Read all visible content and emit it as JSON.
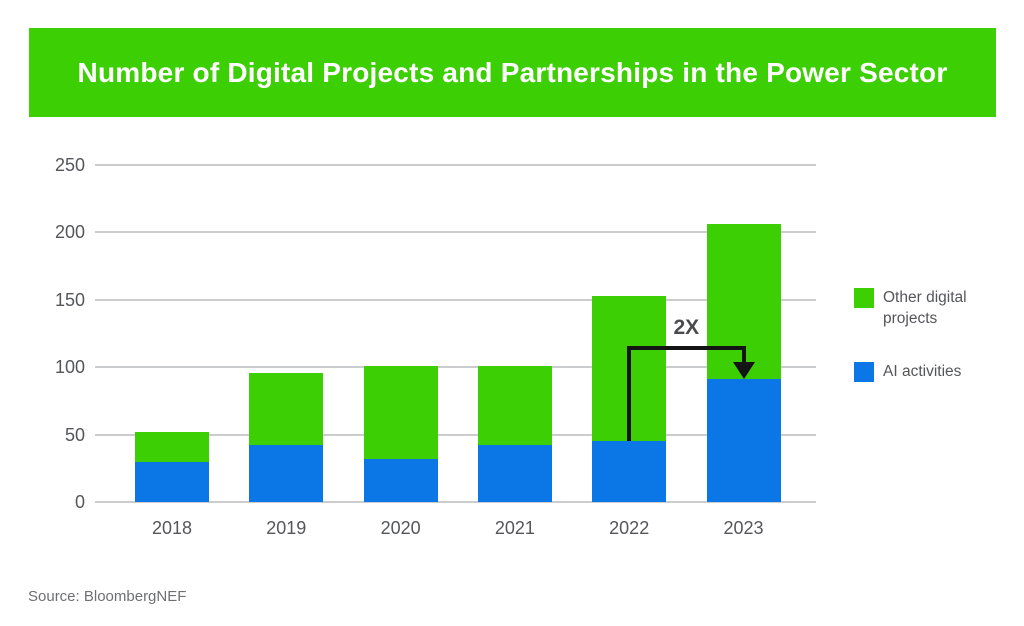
{
  "title": "Number of Digital Projects and Partnerships in the Power Sector",
  "source": "Source: BloombergNEF",
  "colors": {
    "banner_green": "#3CCF04",
    "series_green": "#3CCF04",
    "series_blue": "#0B76E6",
    "gridline": "#CBCCCD",
    "axis_text": "#55565A",
    "annotation_line": "#141414",
    "annotation_text": "#4A4B4D",
    "legend_text": "#55565A",
    "source_text": "#6E6F72",
    "title_text": "#FFFFFF"
  },
  "legend": {
    "items": [
      {
        "label": "Other digital projects",
        "color_key": "series_green"
      },
      {
        "label": "AI activities",
        "color_key": "series_blue"
      }
    ]
  },
  "chart_data": {
    "type": "bar",
    "stacked": true,
    "title": "Number of Digital Projects and Partnerships in the Power Sector",
    "xlabel": "",
    "ylabel": "",
    "categories": [
      "2018",
      "2019",
      "2020",
      "2021",
      "2022",
      "2023"
    ],
    "series": [
      {
        "name": "AI activities",
        "color_key": "series_blue",
        "values": [
          30,
          42,
          32,
          42,
          45,
          91
        ]
      },
      {
        "name": "Other digital projects",
        "color_key": "series_green",
        "values": [
          22,
          54,
          69,
          59,
          108,
          115
        ]
      }
    ],
    "totals": [
      52,
      96,
      101,
      101,
      153,
      206
    ],
    "ylim": [
      0,
      250
    ],
    "yticks": [
      0,
      50,
      100,
      150,
      200,
      250
    ],
    "grid": "horizontal",
    "legend_position": "right",
    "annotation": {
      "label": "2X",
      "from_category": "2022",
      "to_category": "2023",
      "series": "AI activities",
      "bracket_value": 114
    }
  }
}
